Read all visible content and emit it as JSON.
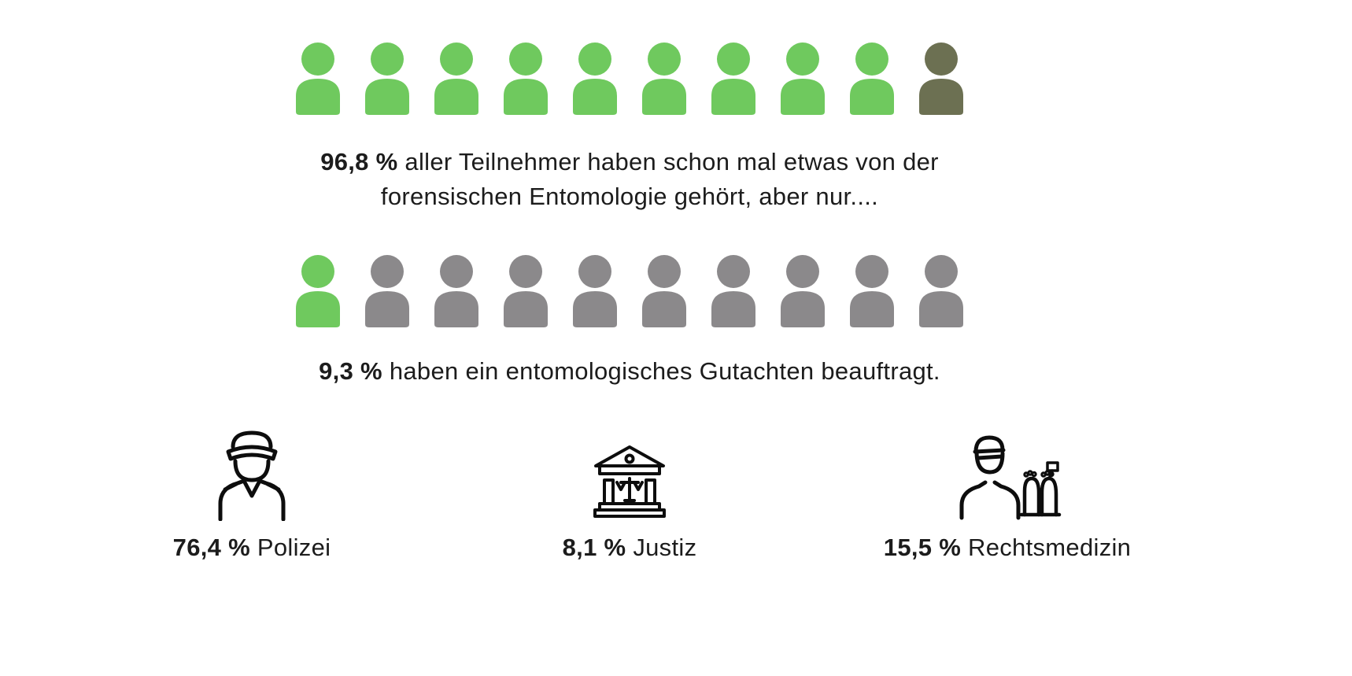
{
  "chart_data": {
    "type": "pictogram",
    "rows": [
      {
        "value": 96.8,
        "value_label": "96,8 %",
        "text": "aller Teilnehmer haben schon mal etwas von der forensischen Entomologie gehört, aber nur....",
        "icons_total": 10,
        "icons_green": 9,
        "icons_olive": 1,
        "icons_gray": 0
      },
      {
        "value": 9.3,
        "value_label": "9,3 %",
        "text": "haben ein entomologisches Gutachten beauftragt.",
        "icons_total": 10,
        "icons_green": 1,
        "icons_olive": 0,
        "icons_gray": 9
      }
    ],
    "categories": [
      {
        "icon": "police-officer-icon",
        "value": 76.4,
        "value_label": "76,4 %",
        "label": "Polizei"
      },
      {
        "icon": "courthouse-icon",
        "value": 8.1,
        "value_label": "8,1 %",
        "label": "Justiz"
      },
      {
        "icon": "forensic-medicine-icon",
        "value": 15.5,
        "value_label": "15,5 %",
        "label": "Rechtsmedizin"
      }
    ],
    "colors": {
      "green": "#6fc95e",
      "gray": "#8b898b",
      "olive": "#6c7052",
      "text": "#1c1c1c"
    }
  }
}
